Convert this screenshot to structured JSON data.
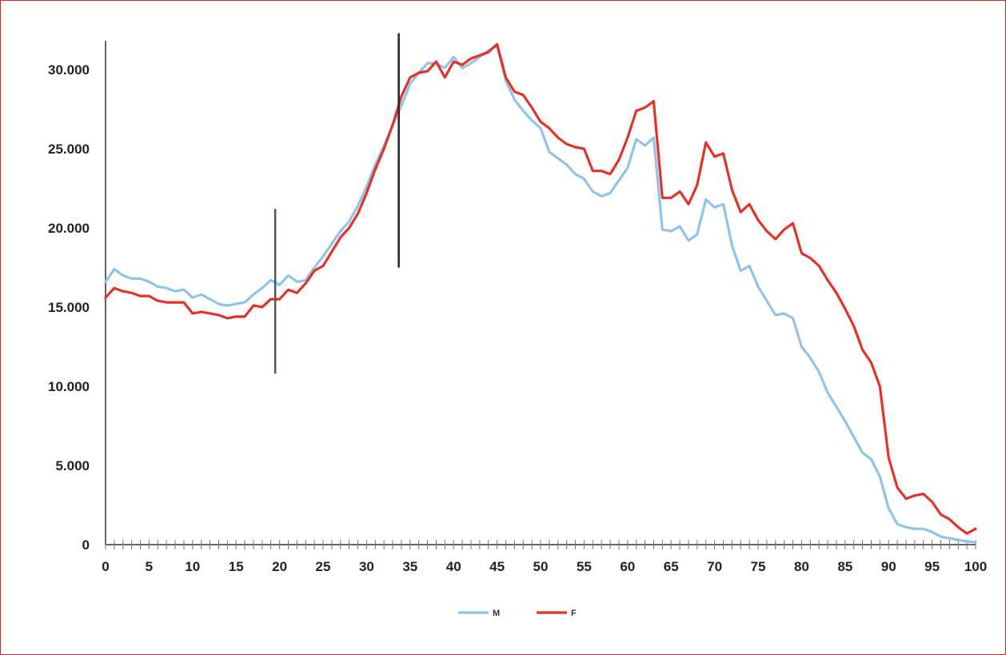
{
  "chart_data": {
    "type": "line",
    "title": "",
    "xlabel": "",
    "ylabel": "",
    "xlim": [
      0,
      100
    ],
    "ylim": [
      0,
      32000
    ],
    "x_ticks": [
      0,
      5,
      10,
      15,
      20,
      25,
      30,
      35,
      40,
      45,
      50,
      55,
      60,
      65,
      70,
      75,
      80,
      85,
      90,
      95,
      100
    ],
    "x_tick_labels": [
      "0",
      "5",
      "10",
      "15",
      "20",
      "25",
      "30",
      "35",
      "40",
      "45",
      "50",
      "55",
      "60",
      "65",
      "70",
      "75",
      "80",
      "85",
      "90",
      "95",
      "100"
    ],
    "y_ticks": [
      0,
      5000,
      10000,
      15000,
      20000,
      25000,
      30000
    ],
    "y_tick_labels": [
      "0",
      "5.000",
      "10.000",
      "15.000",
      "20.000",
      "25.000",
      "30.000"
    ],
    "grid": false,
    "legend_position": "bottom-center",
    "markers": [
      {
        "x": 19.5,
        "y_from": 10800,
        "y_to": 21200,
        "color": "#555555"
      },
      {
        "x": 33.7,
        "y_from": 17500,
        "y_to": 32300,
        "color": "#222222"
      }
    ],
    "series": [
      {
        "name": "M",
        "color": "#8fc3ea",
        "values": [
          16600,
          17400,
          17000,
          16800,
          16800,
          16600,
          16300,
          16200,
          16000,
          16100,
          15600,
          15800,
          15500,
          15200,
          15100,
          15200,
          15300,
          15800,
          16200,
          16700,
          16400,
          17000,
          16600,
          16700,
          17500,
          18200,
          19000,
          19800,
          20400,
          21400,
          22600,
          24000,
          25200,
          26500,
          27700,
          29100,
          29800,
          30400,
          30400,
          30100,
          30800,
          30100,
          30400,
          30800,
          31200,
          31500,
          29300,
          28100,
          27400,
          26800,
          26300,
          24800,
          24400,
          24000,
          23400,
          23100,
          22300,
          22000,
          22200,
          23000,
          23800,
          25600,
          25200,
          25700,
          19900,
          19800,
          20100,
          19200,
          19600,
          21800,
          21300,
          21500,
          18900,
          17300,
          17600,
          16300,
          15400,
          14500,
          14600,
          14300,
          12500,
          11800,
          10900,
          9600,
          8700,
          7800,
          6800,
          5800,
          5400,
          4300,
          2300,
          1300,
          1100,
          1000,
          1000,
          800,
          500,
          400,
          300,
          200,
          150
        ]
      },
      {
        "name": "F",
        "color": "#e2332a",
        "values": [
          15600,
          16200,
          16000,
          15900,
          15700,
          15700,
          15400,
          15300,
          15300,
          15300,
          14600,
          14700,
          14600,
          14500,
          14300,
          14400,
          14400,
          15100,
          15000,
          15500,
          15500,
          16100,
          15900,
          16500,
          17300,
          17600,
          18500,
          19400,
          20000,
          20900,
          22200,
          23700,
          25000,
          26500,
          28300,
          29500,
          29800,
          29900,
          30500,
          29500,
          30500,
          30300,
          30700,
          30900,
          31100,
          31600,
          29500,
          28600,
          28400,
          27600,
          26700,
          26300,
          25700,
          25300,
          25100,
          25000,
          23600,
          23600,
          23400,
          24300,
          25700,
          27400,
          27600,
          28000,
          21900,
          21900,
          22300,
          21500,
          22700,
          25400,
          24500,
          24700,
          22400,
          21000,
          21500,
          20500,
          19800,
          19300,
          19900,
          20300,
          18400,
          18100,
          17600,
          16700,
          15900,
          14900,
          13800,
          12300,
          11500,
          10000,
          5500,
          3600,
          2900,
          3100,
          3200,
          2700,
          1900,
          1600,
          1100,
          700,
          1000
        ]
      }
    ]
  }
}
